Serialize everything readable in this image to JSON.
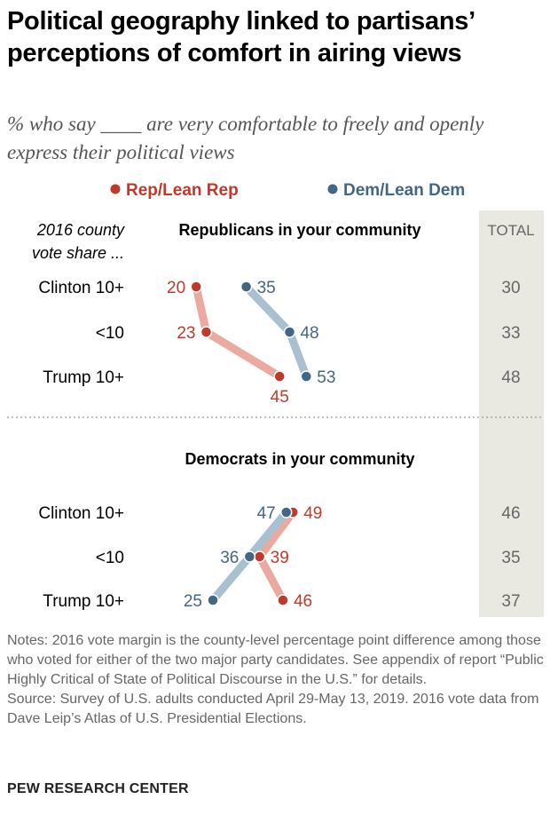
{
  "title": "Political geography linked to partisans’ perceptions of comfort in airing views",
  "subtitle": "% who say ____ are very comfortable to freely and openly express their political views",
  "chart_data": {
    "type": "dot-slope",
    "legend": [
      {
        "name": "Rep/Lean Rep",
        "color": "#c0392b",
        "line_color": "#eba99f"
      },
      {
        "name": "Dem/Lean Dem",
        "color": "#436685",
        "line_color": "#a9c0d1"
      }
    ],
    "legend_placement": "top",
    "row_header": "2016 county vote share ...",
    "total_header": "TOTAL",
    "categories": [
      "Clinton 10+",
      "<10",
      "Trump 10+"
    ],
    "panels": [
      {
        "title": "Republicans in your community",
        "series": [
          {
            "name": "Rep/Lean Rep",
            "values": [
              20,
              23,
              45
            ]
          },
          {
            "name": "Dem/Lean Dem",
            "values": [
              35,
              48,
              53
            ]
          }
        ],
        "total": [
          30,
          33,
          48
        ]
      },
      {
        "title": "Democrats in your community",
        "series": [
          {
            "name": "Rep/Lean Rep",
            "values": [
              49,
              39,
              46
            ]
          },
          {
            "name": "Dem/Lean Dem",
            "values": [
              47,
              36,
              25
            ]
          }
        ],
        "total": [
          46,
          35,
          37
        ]
      }
    ]
  },
  "notes": "Notes: 2016 vote margin is the county-level percentage point difference among those who voted for either of the two major party candidates. See appendix of report “Public Highly Critical of State of Political Discourse in the U.S.” for details.",
  "source": "Source: Survey of U.S. adults conducted April 29-May 13, 2019. 2016 vote data from Dave Leip’s Atlas of U.S. Presidential Elections.",
  "brand": "PEW RESEARCH CENTER"
}
